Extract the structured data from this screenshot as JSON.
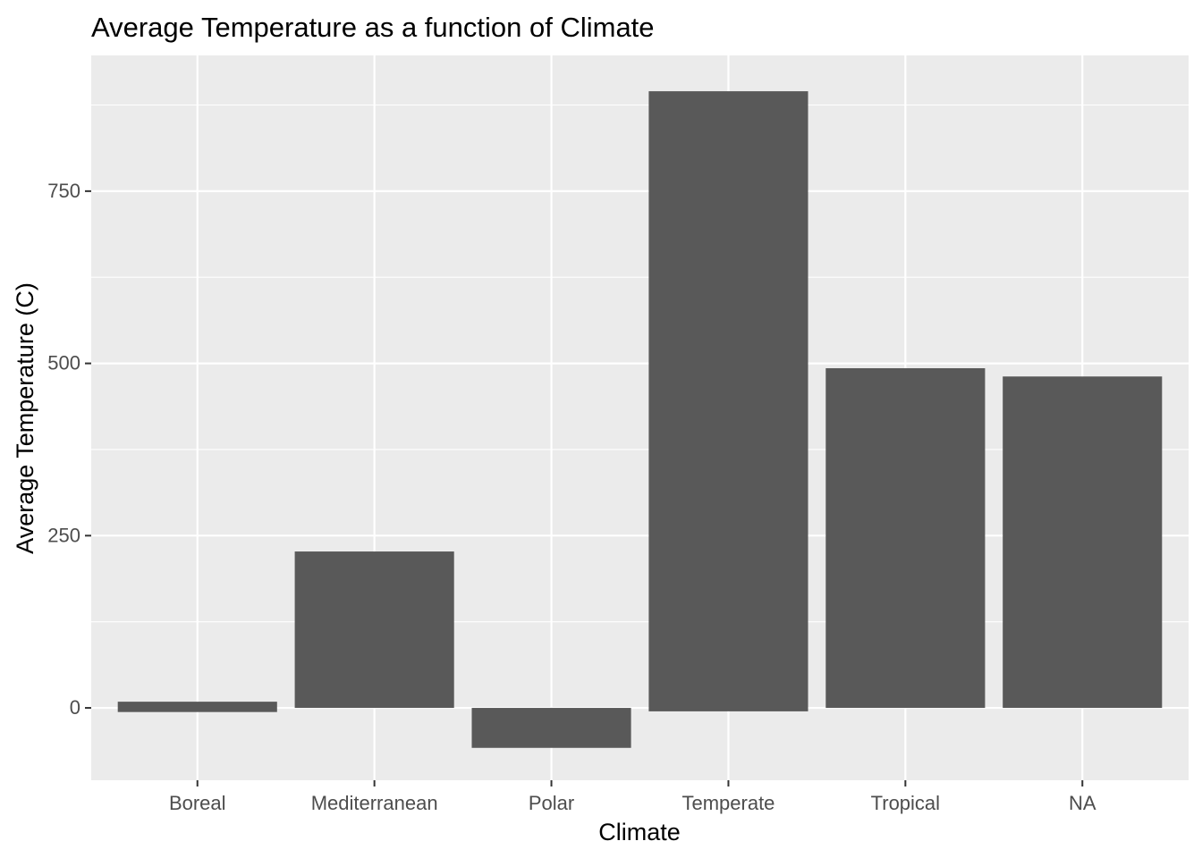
{
  "chart_data": {
    "type": "bar",
    "title": "Average Temperature as a function of Climate",
    "xlabel": "Climate",
    "ylabel": "Average Temperature (C)",
    "categories": [
      "Boreal",
      "Mediterranean",
      "Polar",
      "Temperate",
      "Tropical",
      "NA"
    ],
    "values": [
      9,
      227,
      -58,
      895,
      493,
      481
    ],
    "bar_bottoms": [
      -6,
      0,
      0,
      -5,
      0,
      0
    ],
    "ylim": [
      -105,
      947
    ],
    "yticks": [
      0,
      250,
      500,
      750
    ],
    "grid": true,
    "legend": "none",
    "colors": {
      "panel_background": "#ebebeb",
      "grid_major": "#ffffff",
      "bar_fill": "#595959",
      "tick_text": "#4d4d4d",
      "tick_mark": "#333333"
    }
  }
}
